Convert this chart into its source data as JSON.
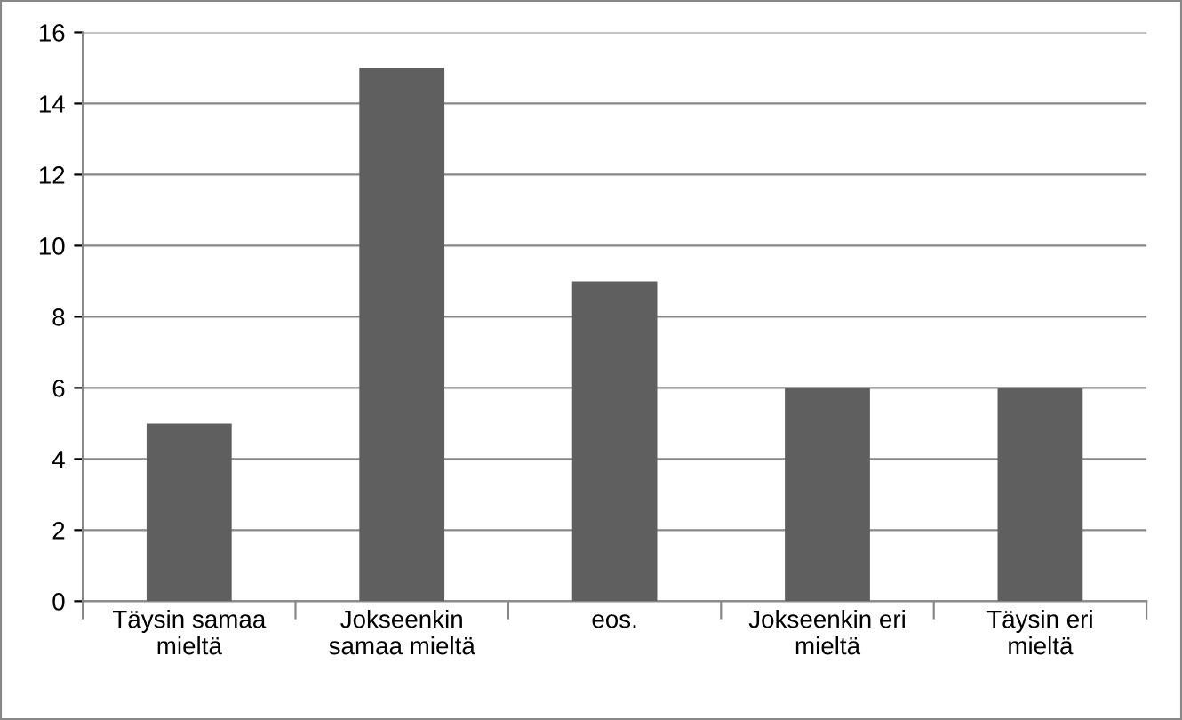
{
  "chart_data": {
    "type": "bar",
    "categories": [
      "Täysin samaa\nmieltä",
      "Jokseenkin\nsamaa mieltä",
      "eos.",
      "Jokseenkin eri\nmieltä",
      "Täysin eri\nmieltä"
    ],
    "values": [
      5,
      15,
      9,
      6,
      6
    ],
    "color": "#5f5f5f",
    "ylim": [
      0,
      16
    ],
    "yticks": [
      0,
      2,
      4,
      6,
      8,
      10,
      12,
      14,
      16
    ],
    "grid": "y"
  }
}
